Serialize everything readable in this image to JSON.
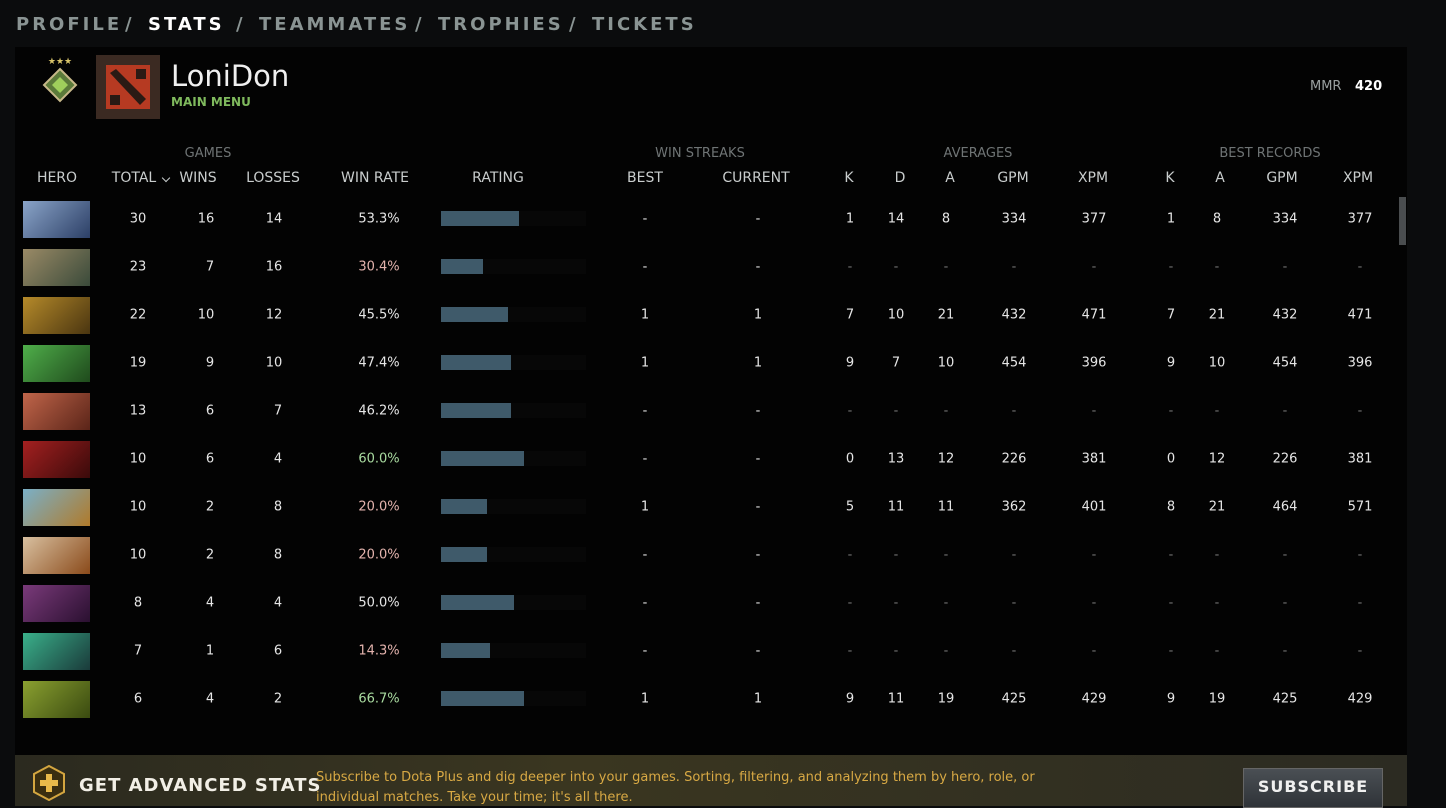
{
  "nav": [
    "PROFILE",
    "STATS",
    "TEAMMATES",
    "TROPHIES",
    "TICKETS"
  ],
  "header": {
    "name": "LoniDon",
    "status": "MAIN MENU",
    "mmr_label": "MMR",
    "mmr_value": 420
  },
  "table": {
    "groups": [
      "GAMES",
      "WIN STREAKS",
      "AVERAGES",
      "BEST RECORDS"
    ],
    "columns": [
      "HERO",
      "TOTAL",
      "WINS",
      "LOSSES",
      "WIN RATE",
      "RATING",
      "BEST",
      "CURRENT",
      "K",
      "D",
      "A",
      "GPM",
      "XPM",
      "K",
      "A",
      "GPM",
      "XPM"
    ],
    "rows": [
      {
        "total": 30,
        "wins": 16,
        "losses": 14,
        "win_rate": "53.3%",
        "win_rate_color": "#e6e6e6",
        "rating": 54,
        "stats": [
          "-",
          "-",
          1,
          14,
          8,
          334,
          377,
          1,
          8,
          334,
          377
        ]
      },
      {
        "total": 23,
        "wins": 7,
        "losses": 16,
        "win_rate": "30.4%",
        "win_rate_color": "#e3b3ad",
        "rating": 29,
        "stats": [
          "-",
          "-",
          "-",
          "-",
          "-",
          "-",
          "-",
          "-",
          "-",
          "-",
          "-"
        ]
      },
      {
        "total": 22,
        "wins": 10,
        "losses": 12,
        "win_rate": "45.5%",
        "win_rate_color": "#e6e6e6",
        "rating": 46,
        "stats": [
          1,
          1,
          7,
          10,
          21,
          432,
          471,
          7,
          21,
          432,
          471
        ]
      },
      {
        "total": 19,
        "wins": 9,
        "losses": 10,
        "win_rate": "47.4%",
        "win_rate_color": "#e6e6e6",
        "rating": 48,
        "stats": [
          1,
          1,
          9,
          7,
          10,
          454,
          396,
          9,
          10,
          454,
          396
        ]
      },
      {
        "total": 13,
        "wins": 6,
        "losses": 7,
        "win_rate": "46.2%",
        "win_rate_color": "#e6e6e6",
        "rating": 48,
        "stats": [
          "-",
          "-",
          "-",
          "-",
          "-",
          "-",
          "-",
          "-",
          "-",
          "-",
          "-"
        ]
      },
      {
        "total": 10,
        "wins": 6,
        "losses": 4,
        "win_rate": "60.0%",
        "win_rate_color": "#a9dba0",
        "rating": 57,
        "stats": [
          "-",
          "-",
          0,
          13,
          12,
          226,
          381,
          0,
          12,
          226,
          381
        ]
      },
      {
        "total": 10,
        "wins": 2,
        "losses": 8,
        "win_rate": "20.0%",
        "win_rate_color": "#e3b3ad",
        "rating": 32,
        "stats": [
          1,
          "-",
          5,
          11,
          11,
          362,
          401,
          8,
          21,
          464,
          571
        ]
      },
      {
        "total": 10,
        "wins": 2,
        "losses": 8,
        "win_rate": "20.0%",
        "win_rate_color": "#e3b3ad",
        "rating": 32,
        "stats": [
          "-",
          "-",
          "-",
          "-",
          "-",
          "-",
          "-",
          "-",
          "-",
          "-",
          "-"
        ]
      },
      {
        "total": 8,
        "wins": 4,
        "losses": 4,
        "win_rate": "50.0%",
        "win_rate_color": "#e6e6e6",
        "rating": 50,
        "stats": [
          "-",
          "-",
          "-",
          "-",
          "-",
          "-",
          "-",
          "-",
          "-",
          "-",
          "-"
        ]
      },
      {
        "total": 7,
        "wins": 1,
        "losses": 6,
        "win_rate": "14.3%",
        "win_rate_color": "#e3b3ad",
        "rating": 34,
        "stats": [
          "-",
          "-",
          "-",
          "-",
          "-",
          "-",
          "-",
          "-",
          "-",
          "-",
          "-"
        ]
      },
      {
        "total": 6,
        "wins": 4,
        "losses": 2,
        "win_rate": "66.7%",
        "win_rate_color": "#a9dba0",
        "rating": 57,
        "stats": [
          1,
          1,
          9,
          11,
          19,
          425,
          429,
          9,
          19,
          425,
          429
        ]
      }
    ]
  },
  "banner": {
    "title": "GET ADVANCED STATS",
    "text": "Subscribe to Dota Plus and dig deeper into your games. Sorting, filtering, and analyzing them by hero, role, or individual matches. Take your time; it's all there.",
    "button": "SUBSCRIBE"
  }
}
